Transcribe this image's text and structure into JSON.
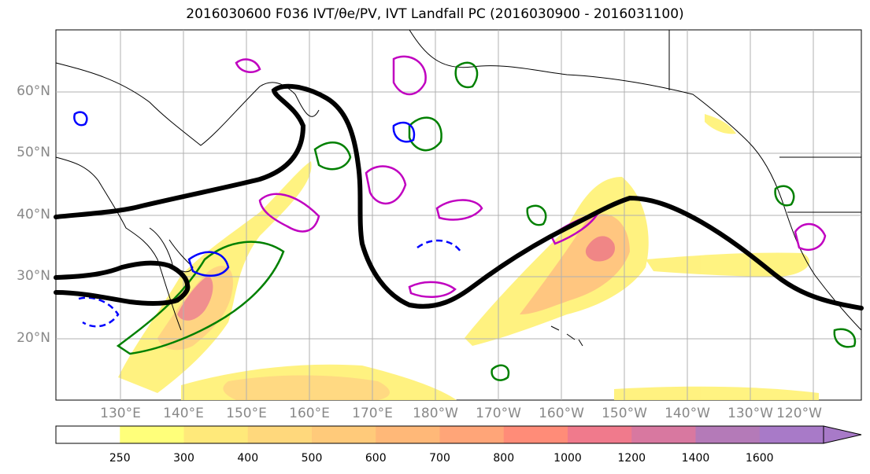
{
  "title": "2016030600 F036 IVT/θe/PV, IVT Landfall PC (2016030900 - 2016031100)",
  "lat_labels": [
    "60°N",
    "50°N",
    "40°N",
    "30°N",
    "20°N"
  ],
  "lon_labels": [
    "130°E",
    "140°E",
    "150°E",
    "160°E",
    "170°E",
    "180°W",
    "170°W",
    "160°W",
    "150°W",
    "140°W",
    "130°W",
    "120°W"
  ],
  "colorbar": {
    "labels": [
      "250",
      "300",
      "400",
      "500",
      "600",
      "700",
      "800",
      "1000",
      "1200",
      "1400",
      "1600"
    ],
    "colors": [
      "#ffffff",
      "#ffff7a",
      "#ffe97a",
      "#ffd87c",
      "#ffca7a",
      "#ffb878",
      "#ffa578",
      "#ff8c78",
      "#f07a8c",
      "#d878a0",
      "#b47ab8",
      "#a87ac8"
    ]
  },
  "colors": {
    "landfall_pc": "#000000",
    "theta_e": "#008000",
    "pv_positive": "#0000ff",
    "pv_magenta": "#c000c0",
    "coast": "#000000",
    "grid": "#b0b0b0"
  }
}
